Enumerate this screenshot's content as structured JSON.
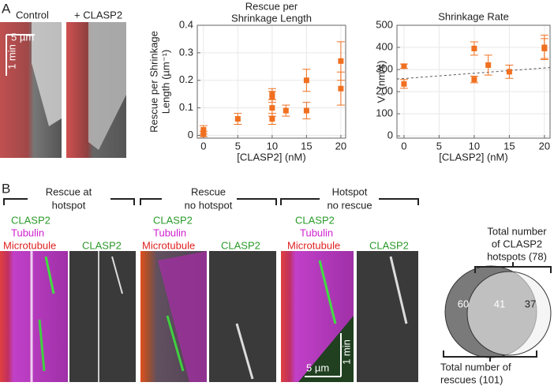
{
  "panel_a": {
    "label": "A",
    "kymographs": [
      "Control",
      "+ CLASP2"
    ],
    "scale_length": "5 µm",
    "scale_time": "1 min"
  },
  "chart_data": [
    {
      "type": "scatter",
      "title": [
        "Rescue per",
        "Shrinkage Length"
      ],
      "ylabel": [
        "Rescue per Shrinkage",
        "Length (µm⁻¹)"
      ],
      "xlabel": "[CLASP2] (nM)",
      "xlim": [
        -0.9,
        20.7
      ],
      "ylim": [
        -0.01,
        0.4
      ],
      "xticks": [
        0,
        5,
        10,
        15,
        20
      ],
      "yticks": [
        0,
        0.1,
        0.2,
        0.3,
        0.4
      ],
      "grid": true,
      "series": [
        {
          "color": "#f07020",
          "x": [
            0,
            0,
            5,
            10,
            10,
            10,
            10,
            12,
            15,
            15,
            20,
            20
          ],
          "values": [
            0.02,
            0.005,
            0.06,
            0.15,
            0.14,
            0.1,
            0.06,
            0.09,
            0.2,
            0.09,
            0.27,
            0.17
          ],
          "errors": [
            0.015,
            0.01,
            0.02,
            0.02,
            0.02,
            0.03,
            0.02,
            0.02,
            0.04,
            0.03,
            0.07,
            0.06
          ]
        }
      ]
    },
    {
      "type": "scatter",
      "title": [
        "Shrinkage Rate"
      ],
      "ylabel": [
        "Vₛ (nm/s)"
      ],
      "xlabel": "[CLASP2] (nM)",
      "xlim": [
        -1.0,
        20.8
      ],
      "ylim": [
        -10,
        500
      ],
      "xticks": [
        0,
        5,
        10,
        15,
        20
      ],
      "yticks": [
        0,
        100,
        200,
        300,
        400,
        500
      ],
      "grid": true,
      "series": [
        {
          "color": "#f07020",
          "x": [
            0,
            0,
            10,
            10,
            12,
            15,
            20,
            20
          ],
          "values": [
            315,
            235,
            395,
            255,
            320,
            290,
            400,
            395
          ],
          "errors": [
            10,
            20,
            30,
            15,
            45,
            30,
            55,
            45
          ]
        }
      ],
      "fit": {
        "color": "#555555",
        "x": [
          -1.0,
          20.8
        ],
        "values": [
          257,
          309
        ]
      }
    }
  ],
  "panel_b": {
    "label": "B",
    "groups": [
      {
        "title": [
          "Rescue at",
          "hotspot"
        ]
      },
      {
        "title": [
          "Rescue",
          "no hotspot"
        ]
      },
      {
        "title": [
          "Hotspot",
          "no rescue"
        ]
      }
    ],
    "channels": [
      "CLASP2",
      "Tubulin",
      "Microtubule"
    ],
    "single_channel": "CLASP2",
    "scale_length": "5 µm",
    "scale_time": "1 min"
  },
  "venn": {
    "top_label": [
      "Total number",
      "of CLASP2",
      "hotspots (78)"
    ],
    "bottom_label": [
      "Total number of",
      "rescues (101)"
    ],
    "left_only": 60,
    "overlap": 41,
    "right_only": 37
  }
}
